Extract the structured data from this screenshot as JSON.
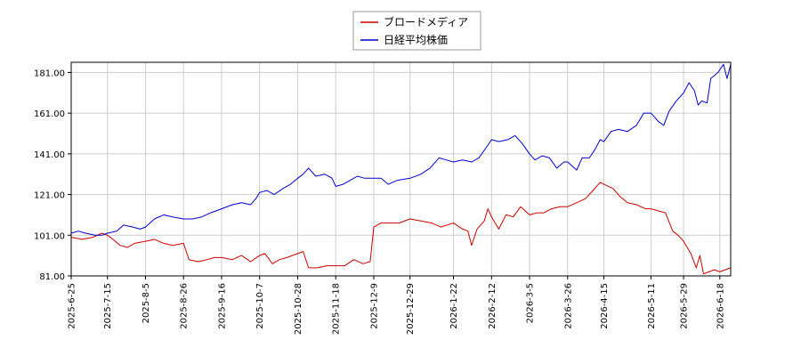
{
  "chart_data": {
    "type": "line",
    "title": "",
    "xlabel": "",
    "ylabel": "",
    "grid": true,
    "legend_placement": "top-center",
    "ylim": [
      81,
      186
    ],
    "xlim": [
      "2025-06-25",
      "2026-06-24"
    ],
    "y_ticks": [
      "81.00",
      "101.00",
      "121.00",
      "141.00",
      "161.00",
      "181.00"
    ],
    "x_ticks": [
      "2025-6-25",
      "2025-7-15",
      "2025-8-5",
      "2025-8-26",
      "2025-9-16",
      "2025-10-7",
      "2025-10-28",
      "2025-11-18",
      "2025-12-9",
      "2025-12-29",
      "2026-1-22",
      "2026-2-12",
      "2026-3-5",
      "2026-3-26",
      "2026-4-15",
      "2026-5-11",
      "2026-5-29",
      "2026-6-18"
    ],
    "series": [
      {
        "name": "ブロードメディア",
        "color": "#cc0000",
        "points": [
          [
            "2025-06-25",
            100
          ],
          [
            "2025-07-01",
            99
          ],
          [
            "2025-07-07",
            100
          ],
          [
            "2025-07-12",
            102
          ],
          [
            "2025-07-15",
            101
          ],
          [
            "2025-07-18",
            99
          ],
          [
            "2025-07-22",
            96
          ],
          [
            "2025-07-26",
            95
          ],
          [
            "2025-07-30",
            97
          ],
          [
            "2025-08-05",
            98
          ],
          [
            "2025-08-10",
            99
          ],
          [
            "2025-08-15",
            97
          ],
          [
            "2025-08-20",
            96
          ],
          [
            "2025-08-26",
            97
          ],
          [
            "2025-08-29",
            89
          ],
          [
            "2025-09-03",
            88
          ],
          [
            "2025-09-08",
            89
          ],
          [
            "2025-09-12",
            90
          ],
          [
            "2025-09-16",
            90
          ],
          [
            "2025-09-22",
            89
          ],
          [
            "2025-09-27",
            91
          ],
          [
            "2025-10-02",
            88
          ],
          [
            "2025-10-07",
            91
          ],
          [
            "2025-10-10",
            92
          ],
          [
            "2025-10-14",
            87
          ],
          [
            "2025-10-18",
            89
          ],
          [
            "2025-10-22",
            90
          ],
          [
            "2025-10-28",
            92
          ],
          [
            "2025-10-31",
            93
          ],
          [
            "2025-11-03",
            85
          ],
          [
            "2025-11-08",
            85
          ],
          [
            "2025-11-13",
            86
          ],
          [
            "2025-11-18",
            86
          ],
          [
            "2025-11-23",
            86
          ],
          [
            "2025-11-28",
            89
          ],
          [
            "2025-12-03",
            87
          ],
          [
            "2025-12-07",
            88
          ],
          [
            "2025-12-09",
            105
          ],
          [
            "2025-12-13",
            107
          ],
          [
            "2025-12-18",
            107
          ],
          [
            "2025-12-23",
            107
          ],
          [
            "2025-12-29",
            109
          ],
          [
            "2026-01-04",
            108
          ],
          [
            "2026-01-10",
            107
          ],
          [
            "2026-01-15",
            105
          ],
          [
            "2026-01-22",
            107
          ],
          [
            "2026-01-27",
            104
          ],
          [
            "2026-01-30",
            103
          ],
          [
            "2026-02-01",
            96
          ],
          [
            "2026-02-04",
            104
          ],
          [
            "2026-02-08",
            108
          ],
          [
            "2026-02-10",
            114
          ],
          [
            "2026-02-12",
            110
          ],
          [
            "2026-02-16",
            104
          ],
          [
            "2026-02-20",
            111
          ],
          [
            "2026-02-24",
            110
          ],
          [
            "2026-02-28",
            115
          ],
          [
            "2026-03-05",
            111
          ],
          [
            "2026-03-09",
            112
          ],
          [
            "2026-03-13",
            112
          ],
          [
            "2026-03-17",
            114
          ],
          [
            "2026-03-22",
            115
          ],
          [
            "2026-03-26",
            115
          ],
          [
            "2026-03-31",
            117
          ],
          [
            "2026-04-05",
            119
          ],
          [
            "2026-04-09",
            123
          ],
          [
            "2026-04-13",
            127
          ],
          [
            "2026-04-15",
            126
          ],
          [
            "2026-04-20",
            124
          ],
          [
            "2026-04-24",
            120
          ],
          [
            "2026-04-28",
            117
          ],
          [
            "2026-05-03",
            116
          ],
          [
            "2026-05-08",
            114
          ],
          [
            "2026-05-11",
            114
          ],
          [
            "2026-05-15",
            113
          ],
          [
            "2026-05-19",
            112
          ],
          [
            "2026-05-23",
            103
          ],
          [
            "2026-05-26",
            101
          ],
          [
            "2026-05-29",
            98
          ],
          [
            "2026-06-02",
            92
          ],
          [
            "2026-06-05",
            85
          ],
          [
            "2026-06-07",
            91
          ],
          [
            "2026-06-09",
            82
          ],
          [
            "2026-06-12",
            83
          ],
          [
            "2026-06-15",
            84
          ],
          [
            "2026-06-18",
            83
          ],
          [
            "2026-06-21",
            84
          ],
          [
            "2026-06-24",
            85
          ]
        ]
      },
      {
        "name": "日経平均株価",
        "color": "#0000cc",
        "points": [
          [
            "2025-06-25",
            102
          ],
          [
            "2025-06-29",
            103
          ],
          [
            "2025-07-03",
            102
          ],
          [
            "2025-07-08",
            101
          ],
          [
            "2025-07-12",
            101
          ],
          [
            "2025-07-15",
            102
          ],
          [
            "2025-07-20",
            103
          ],
          [
            "2025-07-24",
            106
          ],
          [
            "2025-07-29",
            105
          ],
          [
            "2025-08-02",
            104
          ],
          [
            "2025-08-05",
            105
          ],
          [
            "2025-08-10",
            109
          ],
          [
            "2025-08-15",
            111
          ],
          [
            "2025-08-20",
            110
          ],
          [
            "2025-08-26",
            109
          ],
          [
            "2025-08-31",
            109
          ],
          [
            "2025-09-05",
            110
          ],
          [
            "2025-09-10",
            112
          ],
          [
            "2025-09-16",
            114
          ],
          [
            "2025-09-22",
            116
          ],
          [
            "2025-09-27",
            117
          ],
          [
            "2025-10-02",
            116
          ],
          [
            "2025-10-05",
            119
          ],
          [
            "2025-10-07",
            122
          ],
          [
            "2025-10-11",
            123
          ],
          [
            "2025-10-15",
            121
          ],
          [
            "2025-10-20",
            124
          ],
          [
            "2025-10-24",
            126
          ],
          [
            "2025-10-28",
            129
          ],
          [
            "2025-10-31",
            131
          ],
          [
            "2025-11-03",
            134
          ],
          [
            "2025-11-07",
            130
          ],
          [
            "2025-11-12",
            131
          ],
          [
            "2025-11-16",
            129
          ],
          [
            "2025-11-18",
            125
          ],
          [
            "2025-11-22",
            126
          ],
          [
            "2025-11-26",
            128
          ],
          [
            "2025-11-30",
            130
          ],
          [
            "2025-12-04",
            129
          ],
          [
            "2025-12-09",
            129
          ],
          [
            "2025-12-13",
            129
          ],
          [
            "2025-12-17",
            126
          ],
          [
            "2025-12-22",
            128
          ],
          [
            "2025-12-29",
            129
          ],
          [
            "2026-01-04",
            131
          ],
          [
            "2026-01-09",
            134
          ],
          [
            "2026-01-14",
            139
          ],
          [
            "2026-01-18",
            138
          ],
          [
            "2026-01-22",
            137
          ],
          [
            "2026-01-27",
            138
          ],
          [
            "2026-02-01",
            137
          ],
          [
            "2026-02-05",
            139
          ],
          [
            "2026-02-09",
            144
          ],
          [
            "2026-02-12",
            148
          ],
          [
            "2026-02-16",
            147
          ],
          [
            "2026-02-21",
            148
          ],
          [
            "2026-02-25",
            150
          ],
          [
            "2026-03-01",
            146
          ],
          [
            "2026-03-05",
            141
          ],
          [
            "2026-03-08",
            138
          ],
          [
            "2026-03-12",
            140
          ],
          [
            "2026-03-16",
            139
          ],
          [
            "2026-03-20",
            134
          ],
          [
            "2026-03-24",
            137
          ],
          [
            "2026-03-26",
            137
          ],
          [
            "2026-03-31",
            133
          ],
          [
            "2026-04-03",
            139
          ],
          [
            "2026-04-07",
            139
          ],
          [
            "2026-04-10",
            143
          ],
          [
            "2026-04-13",
            148
          ],
          [
            "2026-04-15",
            147
          ],
          [
            "2026-04-19",
            152
          ],
          [
            "2026-04-23",
            153
          ],
          [
            "2026-04-28",
            152
          ],
          [
            "2026-05-03",
            155
          ],
          [
            "2026-05-07",
            161
          ],
          [
            "2026-05-11",
            161
          ],
          [
            "2026-05-15",
            157
          ],
          [
            "2026-05-18",
            155
          ],
          [
            "2026-05-21",
            162
          ],
          [
            "2026-05-25",
            167
          ],
          [
            "2026-05-29",
            171
          ],
          [
            "2026-06-01",
            176
          ],
          [
            "2026-06-04",
            172
          ],
          [
            "2026-06-06",
            165
          ],
          [
            "2026-06-08",
            167
          ],
          [
            "2026-06-11",
            166
          ],
          [
            "2026-06-13",
            178
          ],
          [
            "2026-06-17",
            181
          ],
          [
            "2026-06-20",
            185
          ],
          [
            "2026-06-22",
            178
          ],
          [
            "2026-06-24",
            185
          ]
        ]
      }
    ]
  }
}
